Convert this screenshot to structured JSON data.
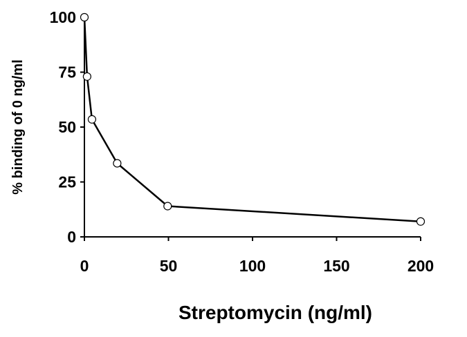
{
  "chart_data": {
    "type": "line",
    "title": "",
    "xlabel": "Streptomycin (ng/ml)",
    "ylabel": "% binding of 0 ng/ml",
    "xlim": [
      0,
      200
    ],
    "ylim": [
      0,
      100
    ],
    "xticks": [
      0,
      50,
      100,
      150,
      200
    ],
    "yticks": [
      0,
      25,
      50,
      75,
      100
    ],
    "grid": false,
    "legend": "none",
    "series": [
      {
        "x": [
          0,
          1.6,
          4.5,
          19.5,
          49.5,
          200
        ],
        "y": [
          100,
          73,
          53.5,
          33.5,
          14,
          7
        ],
        "line_color": "#000000",
        "marker": "open-circle",
        "marker_fill": "#ffffff"
      }
    ]
  }
}
